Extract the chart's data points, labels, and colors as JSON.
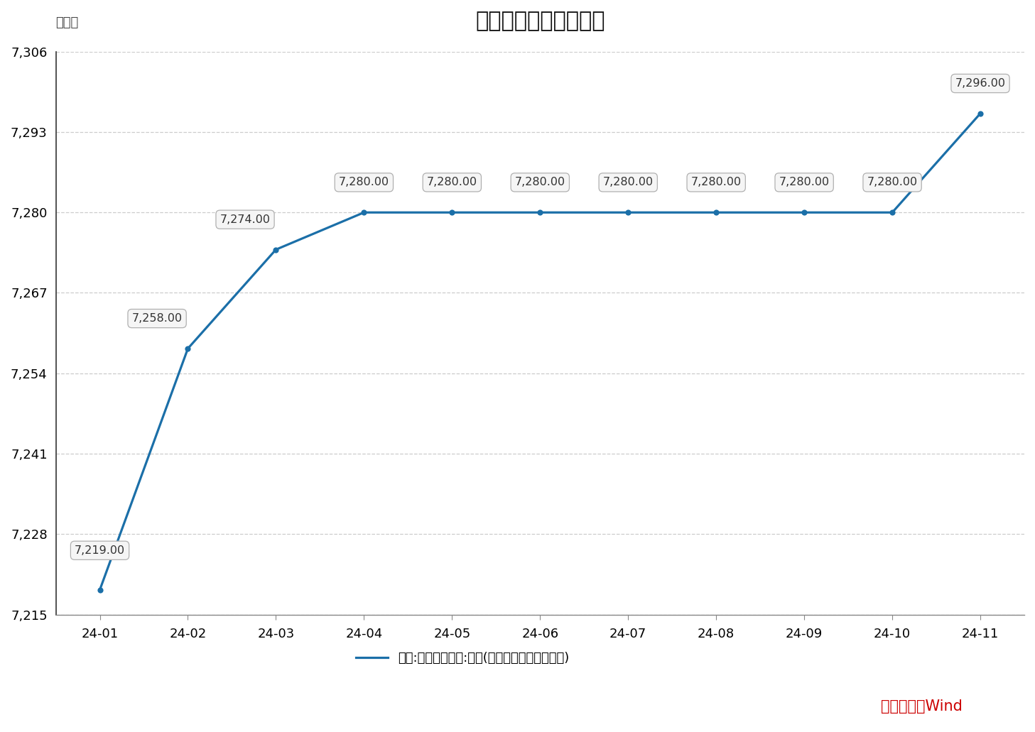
{
  "title": "我国黄金储备变化情况",
  "ylabel": "万盎司",
  "source_text": "数据来源：Wind",
  "legend_label": "中国:官方储备资产:黄金(以盎司计算的纯金数量)",
  "x_labels": [
    "24-01",
    "24-02",
    "24-03",
    "24-04",
    "24-05",
    "24-06",
    "24-07",
    "24-08",
    "24-09",
    "24-10",
    "24-11"
  ],
  "y_values": [
    7219.0,
    7258.0,
    7274.0,
    7280.0,
    7280.0,
    7280.0,
    7280.0,
    7280.0,
    7280.0,
    7280.0,
    7296.0
  ],
  "ylim_min": 7215,
  "ylim_max": 7306,
  "yticks": [
    7215,
    7228,
    7241,
    7254,
    7267,
    7280,
    7293,
    7306
  ],
  "line_color": "#1b6fa8",
  "annotation_box_facecolor": "#f5f5f5",
  "annotation_box_edgecolor": "#b0b0b0",
  "background_color": "#ffffff",
  "grid_color": "#cccccc",
  "title_fontsize": 22,
  "axis_label_fontsize": 13,
  "tick_fontsize": 13,
  "annotation_fontsize": 11.5,
  "legend_fontsize": 13,
  "source_fontsize": 15,
  "source_color": "#cc0000"
}
